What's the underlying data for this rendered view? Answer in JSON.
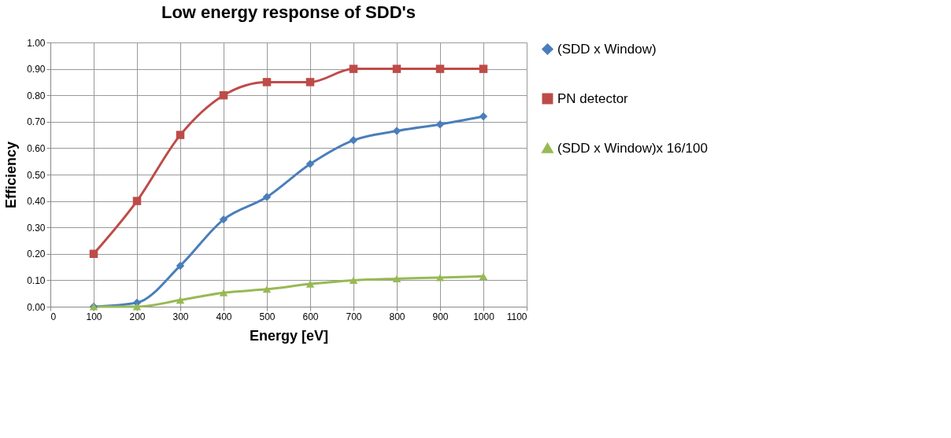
{
  "chart_data": {
    "type": "line",
    "title": "Low energy response of SDD's",
    "xlabel": "Energy [eV]",
    "ylabel": "Efficiency",
    "x": [
      100,
      200,
      300,
      400,
      500,
      600,
      700,
      800,
      900,
      1000
    ],
    "series": [
      {
        "name": "(SDD x Window)",
        "color": "#4a7ebb",
        "marker": "diamond",
        "values": [
          0,
          0.015,
          0.155,
          0.33,
          0.415,
          0.54,
          0.63,
          0.665,
          0.69,
          0.72
        ]
      },
      {
        "name": "PN detector",
        "color": "#be4b48",
        "marker": "square",
        "values": [
          0.2,
          0.4,
          0.65,
          0.8,
          0.85,
          0.85,
          0.9,
          0.9,
          0.9,
          0.9
        ]
      },
      {
        "name": "(SDD x Window)x 16/100",
        "color": "#98b954",
        "marker": "triangle",
        "values": [
          0,
          0,
          0.025,
          0.053,
          0.066,
          0.086,
          0.1,
          0.106,
          0.11,
          0.115
        ]
      }
    ],
    "xlim": [
      0,
      1100
    ],
    "xticks": [
      0,
      100,
      200,
      300,
      400,
      500,
      600,
      700,
      800,
      900,
      1000,
      1100
    ],
    "ylim": [
      0,
      1
    ],
    "yticks": [
      {
        "value": 0,
        "label": "0.00"
      },
      {
        "value": 0.1,
        "label": "0.10"
      },
      {
        "value": 0.2,
        "label": "0.20"
      },
      {
        "value": 0.3,
        "label": "0.30"
      },
      {
        "value": 0.4,
        "label": "0.40"
      },
      {
        "value": 0.5,
        "label": "0.50"
      },
      {
        "value": 0.6,
        "label": "0.60"
      },
      {
        "value": 0.7,
        "label": "0.70"
      },
      {
        "value": 0.8,
        "label": "0.80"
      },
      {
        "value": 0.9,
        "label": "0.90"
      },
      {
        "value": 1,
        "label": "1.00"
      }
    ],
    "grid": true,
    "legend": "right",
    "line_style": "solid"
  }
}
